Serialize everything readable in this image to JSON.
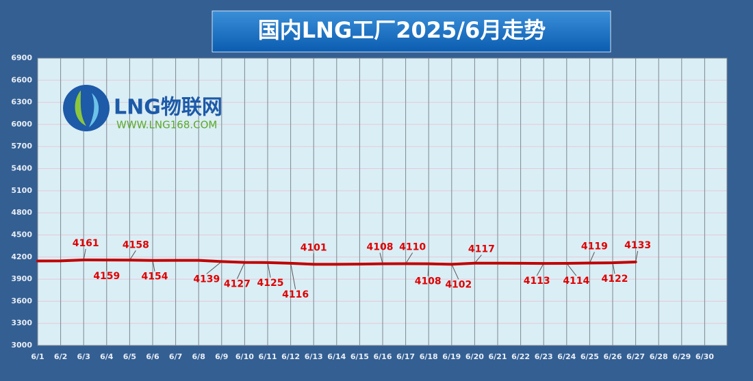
{
  "chart_data": {
    "type": "line",
    "title": "国内LNG工厂2025/6月走势",
    "logo": {
      "name": "LNG物联网",
      "url": "WWW.LNG168.COM"
    },
    "categories": [
      "6/1",
      "6/2",
      "6/3",
      "6/4",
      "6/5",
      "6/6",
      "6/7",
      "6/8",
      "6/9",
      "6/10",
      "6/11",
      "6/12",
      "6/13",
      "6/14",
      "6/15",
      "6/16",
      "6/17",
      "6/18",
      "6/19",
      "6/20",
      "6/21",
      "6/22",
      "6/23",
      "6/24",
      "6/25",
      "6/26",
      "6/27",
      "6/28",
      "6/29",
      "6/30"
    ],
    "series": [
      {
        "name": "LNG",
        "color": "#c00000",
        "values": [
          4147,
          4148,
          4161,
          4159,
          4158,
          4154,
          4155,
          4155,
          4139,
          4127,
          4125,
          4116,
          4101,
          4101,
          4104,
          4108,
          4110,
          4108,
          4102,
          4117,
          4117,
          4116,
          4113,
          4114,
          4119,
          4122,
          4133,
          null,
          null,
          null
        ],
        "value_labels": [
          null,
          null,
          "4161",
          "4159",
          "4158",
          "4154",
          null,
          null,
          "4139",
          "4127",
          "4125",
          "4116",
          "4101",
          null,
          null,
          "4108",
          "4110",
          "4108",
          "4102",
          "4117",
          null,
          null,
          "4113",
          "4114",
          "4119",
          "4122",
          "4133",
          null,
          null,
          null
        ]
      }
    ],
    "ylim": [
      3000,
      6900
    ],
    "yticks": [
      3000,
      3300,
      3600,
      3900,
      4200,
      4500,
      4800,
      5100,
      5400,
      5700,
      6000,
      6300,
      6600,
      6900
    ],
    "grid": true
  }
}
